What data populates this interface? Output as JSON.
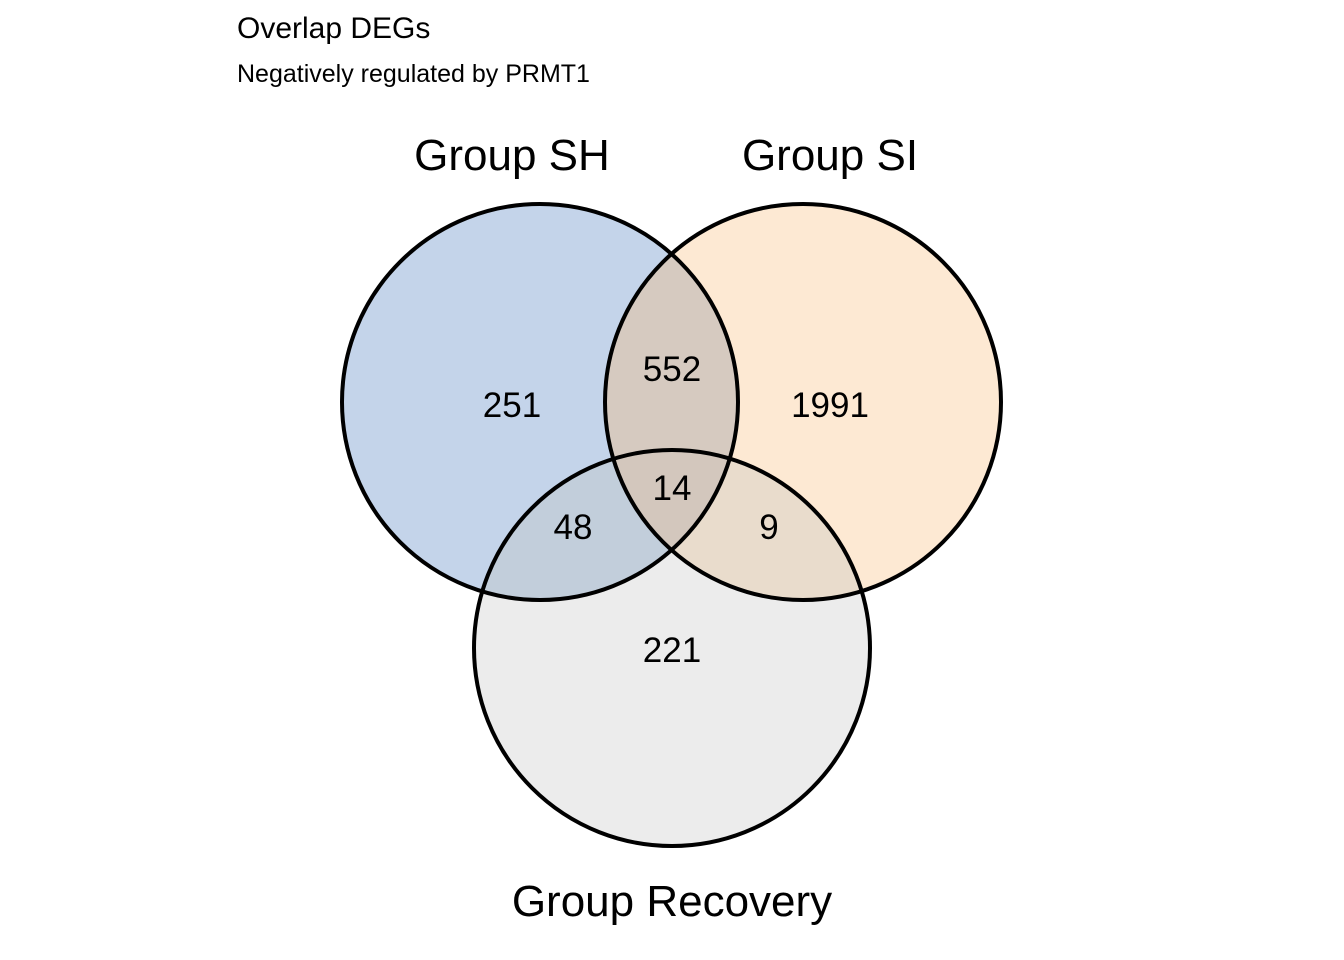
{
  "title": "Overlap DEGs",
  "subtitle": "Negatively regulated by PRMT1",
  "venn": {
    "sets": [
      {
        "key": "sh",
        "name": "Group SH",
        "color": "#C4D4EA"
      },
      {
        "key": "si",
        "name": "Group SI",
        "color": "#FDE9D3"
      },
      {
        "key": "rec",
        "name": "Group Recovery",
        "color": "#ECECEC"
      }
    ],
    "counts": {
      "sh_only": "251",
      "si_only": "1991",
      "rec_only": "221",
      "sh_si": "552",
      "sh_rec": "48",
      "si_rec": "9",
      "sh_si_rec": "14"
    },
    "colors": {
      "sh_si": "#D6CAC0",
      "sh_rec": "#C2CEDB",
      "si_rec": "#E9DCCC",
      "sh_si_rec": "#D3C7BD",
      "stroke": "#000000"
    }
  }
}
